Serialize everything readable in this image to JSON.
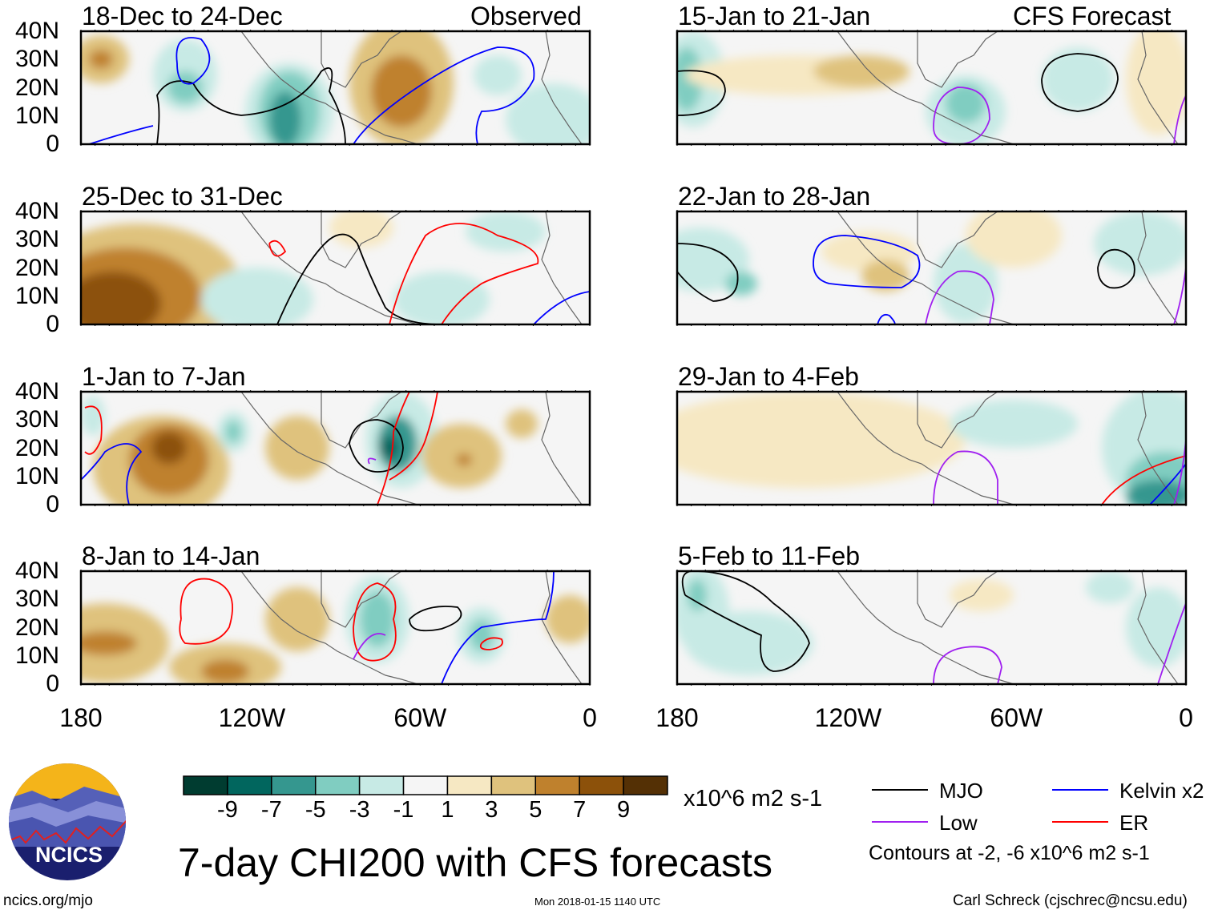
{
  "title": "7-day CHI200 with CFS forecasts",
  "url": "ncics.org/mjo",
  "timestamp": "Mon 2018-01-15 1140 UTC",
  "author": "Carl Schreck (cjschrec@ncsu.edu)",
  "logo_text": "NCICS",
  "units": "x10^6 m2 s-1",
  "contour_note": "Contours at -2, -6 x10^6 m2 s-1",
  "legend": [
    {
      "label": "MJO",
      "color": "#000000"
    },
    {
      "label": "Kelvin x2",
      "color": "#0000ff"
    },
    {
      "label": "Low",
      "color": "#a020f0"
    },
    {
      "label": "ER",
      "color": "#ff0000"
    }
  ],
  "chart_data": {
    "type": "heatmap",
    "title": "7-day CHI200 with CFS forecasts",
    "variable": "CHI200 anomaly",
    "units": "x10^6 m2 s-1",
    "colorbar": {
      "levels": [
        "-9",
        "-7",
        "-5",
        "-3",
        "-1",
        "1",
        "3",
        "5",
        "7",
        "9"
      ],
      "colors": [
        "#003c30",
        "#01665e",
        "#35978f",
        "#80cdc1",
        "#c7eae5",
        "#f5f5f5",
        "#f6e8c3",
        "#dfc27d",
        "#bf812d",
        "#8c510a",
        "#543005"
      ]
    },
    "xticks": [
      "180",
      "120W",
      "60W",
      "0"
    ],
    "yticks": [
      "40N",
      "30N",
      "20N",
      "10N",
      "0"
    ],
    "xlim": [
      180,
      0
    ],
    "ylim": [
      0,
      40
    ],
    "section_labels": {
      "observed": "Observed",
      "forecast": "CFS Forecast"
    },
    "panels": [
      {
        "title": "18-Dec to 24-Dec",
        "column": "observed"
      },
      {
        "title": "25-Dec to 31-Dec",
        "column": "observed"
      },
      {
        "title": "1-Jan to 7-Jan",
        "column": "observed"
      },
      {
        "title": "8-Jan to 14-Jan",
        "column": "observed"
      },
      {
        "title": "15-Jan to 21-Jan",
        "column": "forecast"
      },
      {
        "title": "22-Jan to 28-Jan",
        "column": "forecast"
      },
      {
        "title": "29-Jan to 4-Feb",
        "column": "forecast"
      },
      {
        "title": "5-Feb to 11-Feb",
        "column": "forecast"
      }
    ]
  }
}
